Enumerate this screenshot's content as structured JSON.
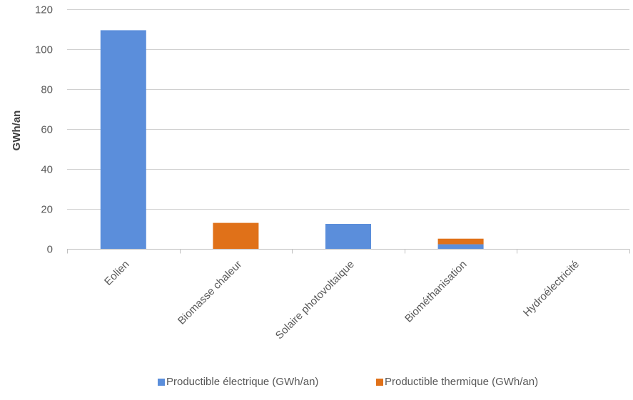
{
  "chart_data": {
    "type": "bar",
    "stacked": true,
    "categories": [
      "Eolien",
      "Biomasse chaleur",
      "Solaire photovoltaique",
      "Biométhanisation",
      "Hydroélectricité"
    ],
    "series": [
      {
        "name": "Productible électrique (GWh/an)",
        "color": "#5b8edb",
        "values": [
          109.5,
          0,
          12.5,
          2.3,
          0
        ]
      },
      {
        "name": "Productible thermique (GWh/an)",
        "color": "#e07119",
        "values": [
          0,
          13,
          0,
          2.8,
          0
        ]
      }
    ],
    "ylabel": "GWh/an",
    "ylim": [
      0,
      120
    ],
    "yticks": [
      0,
      20,
      40,
      60,
      80,
      100,
      120
    ],
    "ytick_labels": [
      "0",
      "20",
      "40",
      "60",
      "80",
      "100",
      "120"
    ],
    "grid": true,
    "legend_position": "bottom"
  }
}
